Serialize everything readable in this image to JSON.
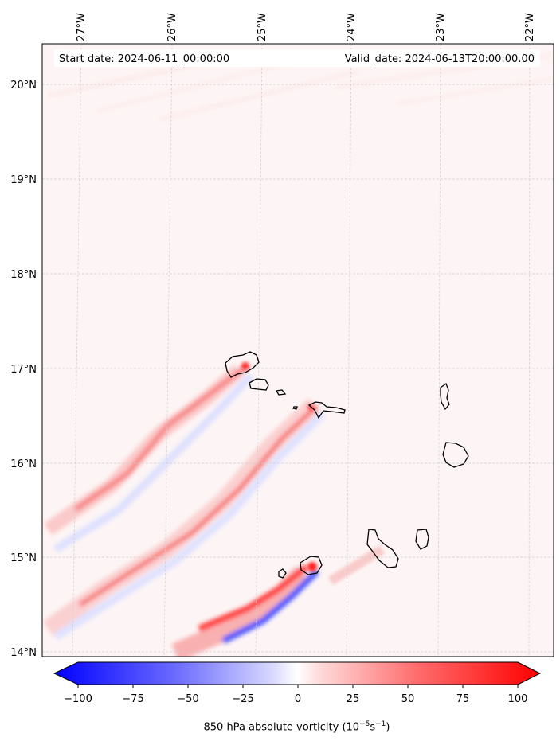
{
  "map": {
    "start_label": "Start date: 2024-06-11_00:00:00",
    "valid_label": "Valid_date: 2024-06-13T20:00:00.00",
    "lon_ticks": [
      "27°W",
      "26°W",
      "25°W",
      "24°W",
      "23°W",
      "22°W"
    ],
    "lat_ticks": [
      "20°N",
      "19°N",
      "18°N",
      "17°N",
      "16°N",
      "15°N",
      "14°N"
    ],
    "colorbar": {
      "ticks": [
        "−100",
        "−75",
        "−50",
        "−25",
        "0",
        "25",
        "50",
        "75",
        "100"
      ],
      "min": -100,
      "max": 100,
      "label_main": "850 hPa absolute vorticity (10",
      "label_exp1": "−5",
      "label_mid": "s",
      "label_exp2": "−1",
      "label_end": ")",
      "colors": {
        "negative": "#0000ff",
        "zero": "#ffffff",
        "positive": "#ff0000"
      }
    }
  }
}
